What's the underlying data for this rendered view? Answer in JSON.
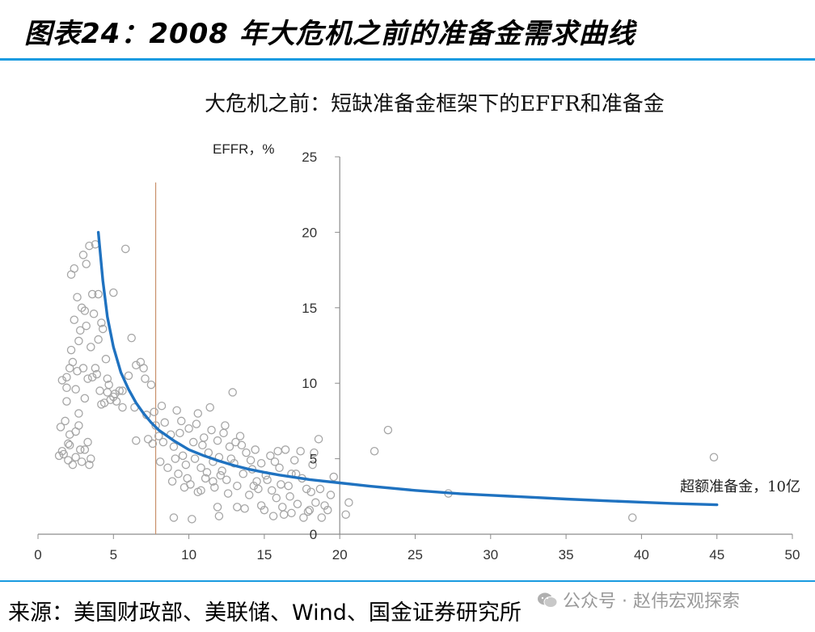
{
  "figure_title": "图表24：2008 年大危机之前的准备金需求曲线",
  "source_text": "来源：美国财政部、美联储、Wind、国金证券研究所",
  "watermark": "公众号 · 赵伟宏观探索",
  "colors": {
    "accent_rule": "#1a9be0",
    "curve": "#1f72c0",
    "points": "#a6a6a6",
    "vline": "#c8906a"
  },
  "chart_data": {
    "type": "scatter",
    "title": "大危机之前：短缺准备金框架下的EFFR和准备金",
    "ylabel": "EFFR，%",
    "xlabel_annotation": "超额准备金，10亿",
    "xlim": [
      0,
      50
    ],
    "ylim": [
      0,
      25
    ],
    "xticks": [
      "0",
      "5",
      "10",
      "15",
      "20",
      "25",
      "30",
      "35",
      "40",
      "45",
      "50"
    ],
    "yticks": [
      "0",
      "5",
      "10",
      "15",
      "20",
      "25"
    ],
    "y_axis_at_x": 20,
    "vline_x": 7.8,
    "curve": {
      "name": "需求曲线",
      "x": [
        4,
        4.3,
        4.6,
        5,
        5.5,
        6,
        6.5,
        7,
        7.5,
        8,
        9,
        10,
        11,
        12,
        13,
        14,
        15,
        16,
        18,
        20,
        22,
        25,
        28,
        30,
        33,
        35,
        38,
        40,
        42,
        45
      ],
      "y": [
        20,
        16.8,
        14.4,
        12.4,
        10.7,
        9.6,
        8.7,
        8,
        7.4,
        6.9,
        6.2,
        5.6,
        5.2,
        4.85,
        4.55,
        4.3,
        4.1,
        3.92,
        3.62,
        3.4,
        3.18,
        2.9,
        2.68,
        2.58,
        2.43,
        2.33,
        2.2,
        2.12,
        2.04,
        1.95
      ]
    },
    "scatter": {
      "name": "EFFR",
      "points": [
        [
          1.5,
          7.1
        ],
        [
          1.6,
          10.2
        ],
        [
          1.7,
          5.3
        ],
        [
          1.8,
          7.5
        ],
        [
          1.9,
          10.4
        ],
        [
          1.9,
          8.8
        ],
        [
          2.0,
          4.9
        ],
        [
          2.1,
          5.9
        ],
        [
          2.1,
          6.6
        ],
        [
          2.2,
          17.2
        ],
        [
          2.2,
          12.2
        ],
        [
          2.3,
          11.4
        ],
        [
          2.4,
          17.6
        ],
        [
          2.4,
          14.2
        ],
        [
          2.5,
          9.6
        ],
        [
          2.5,
          5.1
        ],
        [
          2.6,
          15.7
        ],
        [
          2.7,
          12.8
        ],
        [
          2.7,
          7.2
        ],
        [
          2.8,
          13.5
        ],
        [
          2.8,
          5.6
        ],
        [
          2.9,
          15.0
        ],
        [
          3.0,
          18.5
        ],
        [
          3.0,
          11.0
        ],
        [
          3.1,
          14.8
        ],
        [
          3.1,
          9.0
        ],
        [
          3.2,
          17.9
        ],
        [
          3.2,
          13.8
        ],
        [
          3.3,
          10.3
        ],
        [
          3.3,
          6.1
        ],
        [
          3.4,
          19.1
        ],
        [
          3.5,
          12.4
        ],
        [
          3.5,
          5.0
        ],
        [
          3.6,
          15.9
        ],
        [
          3.7,
          14.6
        ],
        [
          3.8,
          19.2
        ],
        [
          3.8,
          11.0
        ],
        [
          3.9,
          10.6
        ],
        [
          4.0,
          15.9
        ],
        [
          4.0,
          12.9
        ],
        [
          4.1,
          9.5
        ],
        [
          4.2,
          14.0
        ],
        [
          4.3,
          13.6
        ],
        [
          4.4,
          8.7
        ],
        [
          4.5,
          11.6
        ],
        [
          4.6,
          9.4
        ],
        [
          4.7,
          9.9
        ],
        [
          4.8,
          8.9
        ],
        [
          5.0,
          16.0
        ],
        [
          5.1,
          9.3
        ],
        [
          5.2,
          8.8
        ],
        [
          5.4,
          9.5
        ],
        [
          5.6,
          9.5
        ],
        [
          5.8,
          18.9
        ],
        [
          6.0,
          10.5
        ],
        [
          6.2,
          13.0
        ],
        [
          6.5,
          11.2
        ],
        [
          6.8,
          11.4
        ],
        [
          7.0,
          11.0
        ],
        [
          7.1,
          10.3
        ],
        [
          7.3,
          6.3
        ],
        [
          7.5,
          9.9
        ],
        [
          7.7,
          8.1
        ],
        [
          7.8,
          7.2
        ],
        [
          8.0,
          6.5
        ],
        [
          8.2,
          8.5
        ],
        [
          8.4,
          7.4
        ],
        [
          8.6,
          4.4
        ],
        [
          8.8,
          6.6
        ],
        [
          9.0,
          5.8
        ],
        [
          9.1,
          5.0
        ],
        [
          9.3,
          4.0
        ],
        [
          9.4,
          6.7
        ],
        [
          9.6,
          5.2
        ],
        [
          9.8,
          4.6
        ],
        [
          10.0,
          7.0
        ],
        [
          10.1,
          3.3
        ],
        [
          10.3,
          6.1
        ],
        [
          10.4,
          5.0
        ],
        [
          10.6,
          8.0
        ],
        [
          10.8,
          4.4
        ],
        [
          11.0,
          6.4
        ],
        [
          11.1,
          3.7
        ],
        [
          11.3,
          5.4
        ],
        [
          11.4,
          8.4
        ],
        [
          11.6,
          4.8
        ],
        [
          11.7,
          3.1
        ],
        [
          11.9,
          6.2
        ],
        [
          12.0,
          5.1
        ],
        [
          12.2,
          4.2
        ],
        [
          12.4,
          7.2
        ],
        [
          12.5,
          3.6
        ],
        [
          12.7,
          5.8
        ],
        [
          12.9,
          9.4
        ],
        [
          13.0,
          4.7
        ],
        [
          13.2,
          3.2
        ],
        [
          13.4,
          6.5
        ],
        [
          13.6,
          4.0
        ],
        [
          13.8,
          5.4
        ],
        [
          14.0,
          2.6
        ],
        [
          14.2,
          4.3
        ],
        [
          14.4,
          5.6
        ],
        [
          14.6,
          3.0
        ],
        [
          14.8,
          4.7
        ],
        [
          15.0,
          1.6
        ],
        [
          15.2,
          3.6
        ],
        [
          15.4,
          5.2
        ],
        [
          15.6,
          1.2
        ],
        [
          15.8,
          2.4
        ],
        [
          16.0,
          4.4
        ],
        [
          16.2,
          1.8
        ],
        [
          16.4,
          5.6
        ],
        [
          16.6,
          3.2
        ],
        [
          16.8,
          1.4
        ],
        [
          17.0,
          4.9
        ],
        [
          17.2,
          2.0
        ],
        [
          17.4,
          5.5
        ],
        [
          17.6,
          1.1
        ],
        [
          17.8,
          3.0
        ],
        [
          18.0,
          1.6
        ],
        [
          18.2,
          4.6
        ],
        [
          18.4,
          2.1
        ],
        [
          18.6,
          6.3
        ],
        [
          18.8,
          1.1
        ],
        [
          19.2,
          1.6
        ],
        [
          19.6,
          3.8
        ],
        [
          20.4,
          1.3
        ],
        [
          20.6,
          2.1
        ],
        [
          22.3,
          5.5
        ],
        [
          23.2,
          6.9
        ],
        [
          27.2,
          2.7
        ],
        [
          39.4,
          1.1
        ],
        [
          44.8,
          5.1
        ],
        [
          1.4,
          5.2
        ],
        [
          1.6,
          5.5
        ],
        [
          2.0,
          6.0
        ],
        [
          2.3,
          4.6
        ],
        [
          2.5,
          6.8
        ],
        [
          2.9,
          4.8
        ],
        [
          3.1,
          5.6
        ],
        [
          3.4,
          4.6
        ],
        [
          2.6,
          10.8
        ],
        [
          1.9,
          9.7
        ],
        [
          5.6,
          8.4
        ],
        [
          6.4,
          8.4
        ],
        [
          7.2,
          7.9
        ],
        [
          8.3,
          6.1
        ],
        [
          9.2,
          8.2
        ],
        [
          10.5,
          7.3
        ],
        [
          11.5,
          6.9
        ],
        [
          12.3,
          6.7
        ],
        [
          13.5,
          5.9
        ],
        [
          14.3,
          3.2
        ],
        [
          15.1,
          3.9
        ],
        [
          15.9,
          5.5
        ],
        [
          16.7,
          2.5
        ],
        [
          17.5,
          3.7
        ],
        [
          18.3,
          5.4
        ],
        [
          19.0,
          1.9
        ],
        [
          9.0,
          1.1
        ],
        [
          10.2,
          1.0
        ],
        [
          12.0,
          1.2
        ],
        [
          13.2,
          1.8
        ],
        [
          14.8,
          1.9
        ],
        [
          16.3,
          1.3
        ],
        [
          17.9,
          1.5
        ],
        [
          10.8,
          2.9
        ],
        [
          11.6,
          3.5
        ],
        [
          12.6,
          2.7
        ],
        [
          9.7,
          3.1
        ],
        [
          8.9,
          3.5
        ],
        [
          15.5,
          2.9
        ],
        [
          16.8,
          4.0
        ],
        [
          18.7,
          3.0
        ],
        [
          7.6,
          6.0
        ],
        [
          6.5,
          6.2
        ],
        [
          4.6,
          10.3
        ],
        [
          5.0,
          9.1
        ],
        [
          3.6,
          10.4
        ],
        [
          4.2,
          8.6
        ],
        [
          2.1,
          11.0
        ],
        [
          2.7,
          8.0
        ],
        [
          11.9,
          1.8
        ],
        [
          13.7,
          1.7
        ],
        [
          19.4,
          2.6
        ],
        [
          14.5,
          3.5
        ],
        [
          9.5,
          7.5
        ],
        [
          12.8,
          5.0
        ],
        [
          10.9,
          5.9
        ],
        [
          11.2,
          4.1
        ],
        [
          13.1,
          6.1
        ],
        [
          15.7,
          4.8
        ],
        [
          17.1,
          4.0
        ],
        [
          18.1,
          2.8
        ],
        [
          8.1,
          4.8
        ],
        [
          9.9,
          3.7
        ],
        [
          10.6,
          2.8
        ],
        [
          12.1,
          3.9
        ],
        [
          14.1,
          4.9
        ],
        [
          16.1,
          3.3
        ]
      ]
    }
  }
}
